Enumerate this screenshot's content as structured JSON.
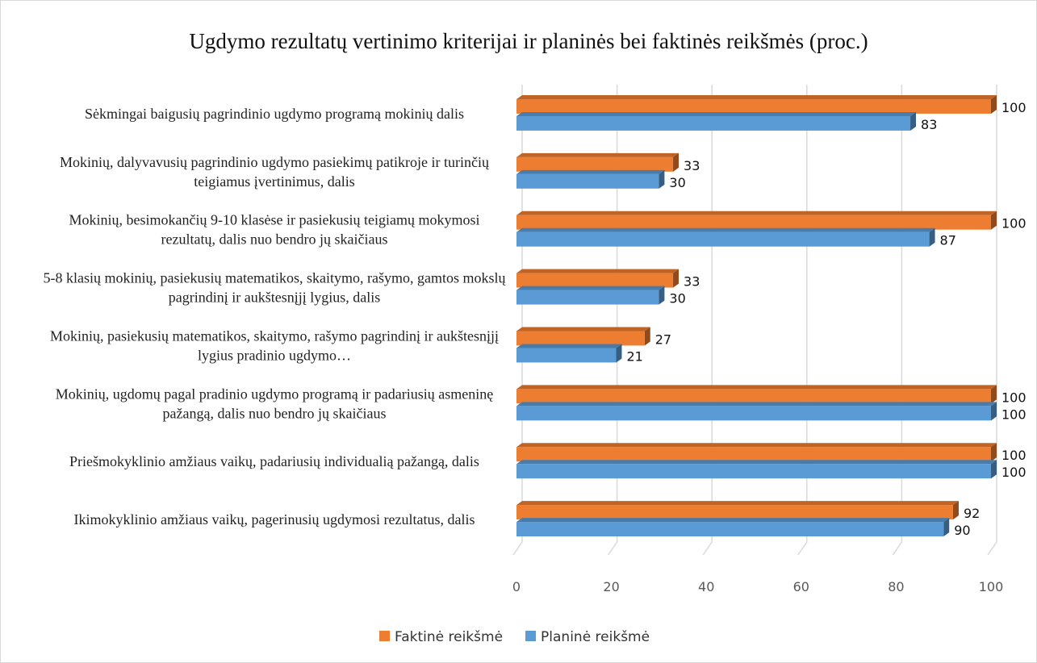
{
  "chart_data": {
    "type": "bar3d_horizontal",
    "title": "Ugdymo rezultatų vertinimo kriterijai ir planinės bei faktinės reikšmės (proc.)",
    "categories": [
      "Sėkmingai baigusių pagrindinio ugdymo programą mokinių dalis",
      "Mokinių, dalyvavusių pagrindinio ugdymo pasiekimų patikroje ir turinčių teigiamus įvertinimus, dalis",
      "Mokinių, besimokančių 9-10 klasėse  ir pasiekusių teigiamų mokymosi rezultatų, dalis nuo bendro jų skaičiaus",
      "5-8 klasių mokinių, pasiekusių matematikos, skaitymo, rašymo, gamtos mokslų pagrindinį ir aukštesnįjį lygius, dalis",
      "Mokinių, pasiekusių matematikos, skaitymo,  rašymo pagrindinį ir aukštesnįjį lygius pradinio ugdymo…",
      "Mokinių, ugdomų pagal pradinio ugdymo programą ir padariusių asmeninę pažangą, dalis nuo bendro jų skaičiaus",
      "Priešmokyklinio  amžiaus vaikų, padariusių individualią pažangą, dalis",
      "Ikimokyklinio amžiaus vaikų, pagerinusių ugdymosi rezultatus, dalis"
    ],
    "series": [
      {
        "name": "Faktinė reikšmė",
        "color": "#ed7d31",
        "values": [
          100,
          33,
          100,
          33,
          27,
          100,
          100,
          92
        ]
      },
      {
        "name": "Planinė reikšmė",
        "color": "#5b9bd5",
        "values": [
          83,
          30,
          87,
          30,
          21,
          100,
          100,
          90
        ]
      }
    ],
    "xlim": [
      0,
      100
    ],
    "xticks": [
      0,
      20,
      40,
      60,
      80,
      100
    ],
    "grid": true,
    "legend": "bottom"
  }
}
